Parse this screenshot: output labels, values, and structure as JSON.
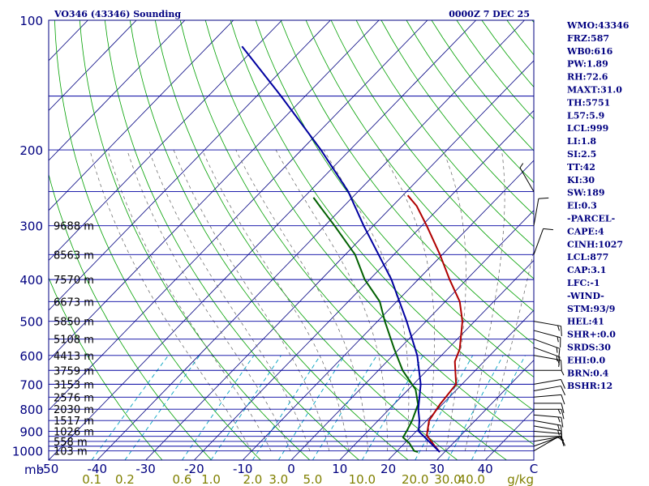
{
  "title_left": "VO346 (43346) Sounding",
  "title_right": "0000Z  7 DEC 25",
  "colors": {
    "frame": "#000080",
    "isobar": "#0000a0",
    "isotherm": "#000080",
    "dry_adiabat": "#00a000",
    "moist_adiabat": "#606060",
    "mixing_ratio": "#00a0c0",
    "temperature": "#b00000",
    "dewpoint": "#006000",
    "parcel": "#0000a0",
    "wind": "#000000",
    "mixing_label": "#808000"
  },
  "stats": [
    "WMO:43346",
    "FRZ:587",
    "WB0:616",
    "PW:1.89",
    "RH:72.6",
    "MAXT:31.0",
    "TH:5751",
    "L57:5.9",
    "LCL:999",
    "LI:1.8",
    "SI:2.5",
    "TT:42",
    "KI:30",
    "SW:189",
    "EI:0.3",
    "-PARCEL-",
    "CAPE:4",
    "CINH:1027",
    "LCL:877",
    "CAP:3.1",
    "LFC:-1",
    "-WIND-",
    "STM:93/9",
    "HEL:41",
    "SHR+:0.0",
    "SRDS:30",
    "EHI:0.0",
    "BRN:0.4",
    "BSHR:12"
  ],
  "chart_data": {
    "type": "line",
    "chart_kind": "skew-T log-P sounding diagram",
    "y_axis_unit": "mb",
    "x_axis_unit": "C",
    "mixing_ratio_unit": "g/kg",
    "pressure_ticks": [
      "100",
      "200",
      "300",
      "400",
      "500",
      "600",
      "700",
      "800",
      "900",
      "1000"
    ],
    "pressure_levels": [
      100,
      150,
      200,
      250,
      300,
      350,
      400,
      450,
      500,
      550,
      600,
      650,
      700,
      750,
      800,
      850,
      900,
      925,
      950,
      975,
      1000
    ],
    "temperature_ticks": [
      "-50",
      "-40",
      "-30",
      "-20",
      "-10",
      "0",
      "10",
      "20",
      "30",
      "40",
      "C"
    ],
    "temperature_tick_values": [
      -50,
      -40,
      -30,
      -20,
      -10,
      0,
      10,
      20,
      30,
      40,
      50
    ],
    "xlim": [
      -50,
      50
    ],
    "ylim": [
      1050,
      100
    ],
    "mixing_ratio_labels": [
      "0.1",
      "0.2",
      "0.6",
      "1.0",
      "2.0",
      "3.0",
      "5.0",
      "10.0",
      "20.0",
      "30.0",
      "40.0"
    ],
    "mixing_ratio_values": [
      0.1,
      0.2,
      0.6,
      1.0,
      2.0,
      3.0,
      5.0,
      10.0,
      20.0,
      30.0,
      40.0
    ],
    "height_labels": [
      {
        "p": 300,
        "label": "9688 m"
      },
      {
        "p": 350,
        "label": "8563 m"
      },
      {
        "p": 400,
        "label": "7570 m"
      },
      {
        "p": 450,
        "label": "6673 m"
      },
      {
        "p": 500,
        "label": "5850 m"
      },
      {
        "p": 550,
        "label": "5108 m"
      },
      {
        "p": 600,
        "label": "4413 m"
      },
      {
        "p": 650,
        "label": "3759 m"
      },
      {
        "p": 700,
        "label": "3153 m"
      },
      {
        "p": 750,
        "label": "2576 m"
      },
      {
        "p": 800,
        "label": "2030 m"
      },
      {
        "p": 850,
        "label": "1517 m"
      },
      {
        "p": 900,
        "label": "1026 m"
      },
      {
        "p": 950,
        "label": "558 m"
      },
      {
        "p": 1000,
        "label": "103 m"
      }
    ],
    "series": [
      {
        "name": "temperature",
        "points": [
          [
            1006,
            29.0
          ],
          [
            970,
            26.5
          ],
          [
            920,
            23.0
          ],
          [
            850,
            20.5
          ],
          [
            780,
            19.5
          ],
          [
            700,
            18.8
          ],
          [
            620,
            14.0
          ],
          [
            580,
            12.5
          ],
          [
            500,
            7.5
          ],
          [
            450,
            3.0
          ],
          [
            400,
            -3.5
          ],
          [
            350,
            -10.5
          ],
          [
            300,
            -19.0
          ],
          [
            270,
            -25.0
          ],
          [
            255,
            -29.0
          ]
        ]
      },
      {
        "name": "dewpoint",
        "points": [
          [
            1006,
            24.5
          ],
          [
            1000,
            23.5
          ],
          [
            960,
            21.0
          ],
          [
            930,
            18.5
          ],
          [
            900,
            18.0
          ],
          [
            850,
            17.0
          ],
          [
            780,
            15.0
          ],
          [
            720,
            11.5
          ],
          [
            650,
            5.0
          ],
          [
            580,
            -1.0
          ],
          [
            500,
            -8.5
          ],
          [
            450,
            -13.5
          ],
          [
            400,
            -21.0
          ],
          [
            350,
            -28.0
          ],
          [
            300,
            -38.0
          ],
          [
            270,
            -45.0
          ],
          [
            258,
            -48.0
          ]
        ]
      },
      {
        "name": "parcel",
        "points": [
          [
            1006,
            29.0
          ],
          [
            900,
            20.5
          ],
          [
            850,
            18.5
          ],
          [
            800,
            16.0
          ],
          [
            700,
            11.5
          ],
          [
            600,
            5.0
          ],
          [
            500,
            -4.0
          ],
          [
            400,
            -15.5
          ],
          [
            300,
            -32.0
          ],
          [
            250,
            -42.0
          ],
          [
            200,
            -56.0
          ],
          [
            150,
            -75.0
          ],
          [
            115,
            -93.0
          ]
        ]
      }
    ],
    "wind_barbs": [
      {
        "p": 1000,
        "dir": 60,
        "kt": 5
      },
      {
        "p": 975,
        "dir": 70,
        "kt": 5
      },
      {
        "p": 950,
        "dir": 80,
        "kt": 10
      },
      {
        "p": 925,
        "dir": 90,
        "kt": 10
      },
      {
        "p": 900,
        "dir": 95,
        "kt": 10
      },
      {
        "p": 875,
        "dir": 100,
        "kt": 15
      },
      {
        "p": 850,
        "dir": 100,
        "kt": 15
      },
      {
        "p": 825,
        "dir": 95,
        "kt": 15
      },
      {
        "p": 800,
        "dir": 90,
        "kt": 15
      },
      {
        "p": 775,
        "dir": 90,
        "kt": 10
      },
      {
        "p": 750,
        "dir": 85,
        "kt": 10
      },
      {
        "p": 725,
        "dir": 80,
        "kt": 10
      },
      {
        "p": 700,
        "dir": 80,
        "kt": 10
      },
      {
        "p": 650,
        "dir": 90,
        "kt": 5
      },
      {
        "p": 600,
        "dir": 100,
        "kt": 15
      },
      {
        "p": 575,
        "dir": 110,
        "kt": 15
      },
      {
        "p": 550,
        "dir": 110,
        "kt": 15
      },
      {
        "p": 525,
        "dir": 105,
        "kt": 15
      },
      {
        "p": 500,
        "dir": 100,
        "kt": 15
      },
      {
        "p": 350,
        "dir": 20,
        "kt": 10
      },
      {
        "p": 300,
        "dir": 10,
        "kt": 10
      },
      {
        "p": 250,
        "dir": 330,
        "kt": 5
      }
    ]
  }
}
